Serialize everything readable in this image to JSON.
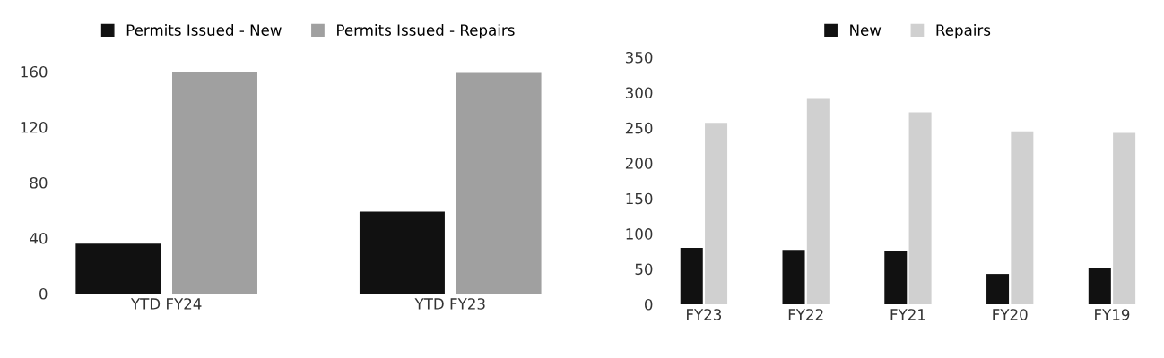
{
  "chart_data": [
    {
      "type": "bar",
      "categories": [
        "YTD FY24",
        "YTD FY23"
      ],
      "series": [
        {
          "name": "Permits Issued - New",
          "color": "#111111",
          "values": [
            36,
            59
          ]
        },
        {
          "name": "Permits Issued - Repairs",
          "color": "#a0a0a0",
          "values": [
            160,
            159
          ]
        }
      ],
      "ylim": [
        0,
        160
      ],
      "yticks": [
        0,
        40,
        80,
        120,
        160
      ],
      "grid": false,
      "legend": "top"
    },
    {
      "type": "bar",
      "categories": [
        "FY23",
        "FY22",
        "FY21",
        "FY20",
        "FY19"
      ],
      "series": [
        {
          "name": "New",
          "color": "#111111",
          "values": [
            80,
            77,
            76,
            43,
            52
          ]
        },
        {
          "name": "Repairs",
          "color": "#d0d0d0",
          "values": [
            257,
            291,
            272,
            245,
            243
          ]
        }
      ],
      "ylim": [
        0,
        350
      ],
      "yticks": [
        0,
        50,
        100,
        150,
        200,
        250,
        300,
        350
      ],
      "grid": false,
      "legend": "top"
    }
  ]
}
